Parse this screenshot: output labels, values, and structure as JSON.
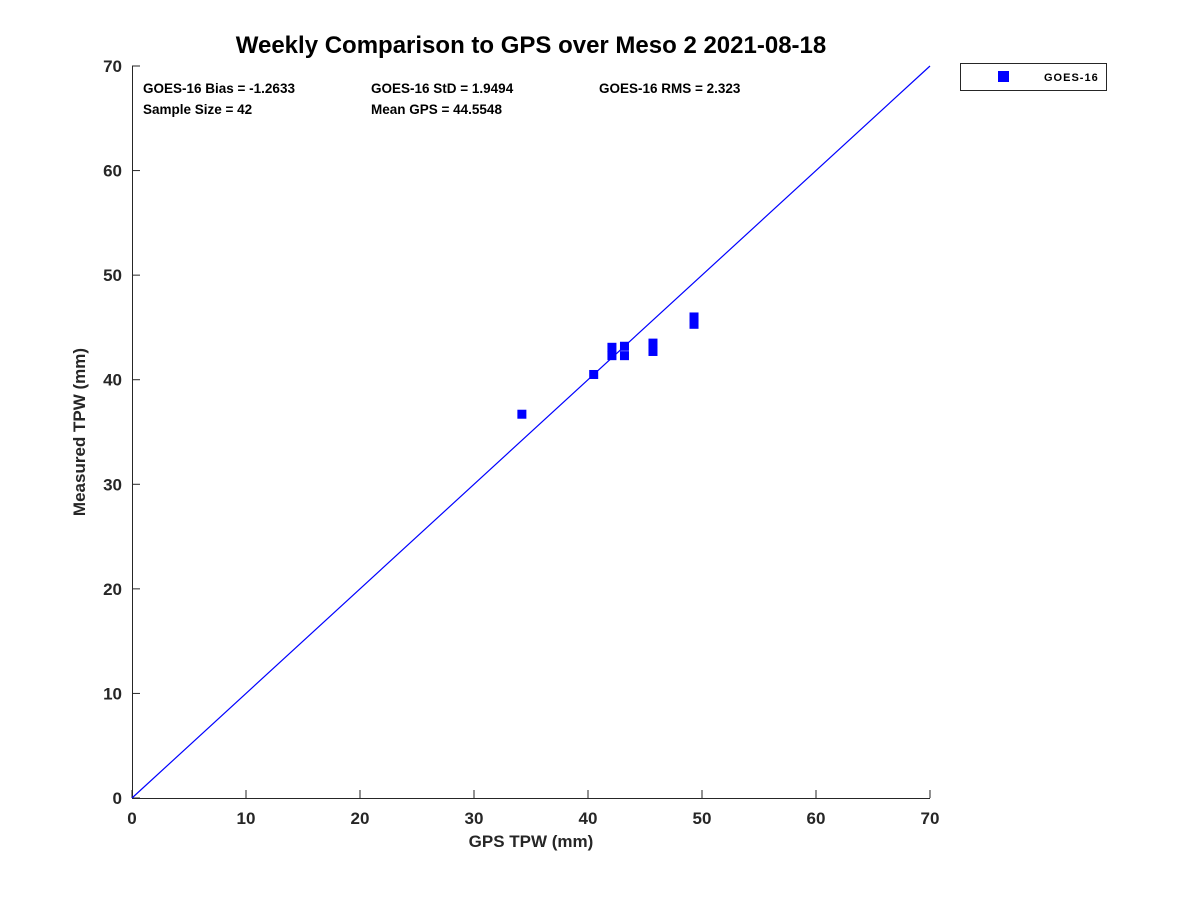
{
  "figure": {
    "title": "Weekly Comparison to GPS over Meso 2 2021-08-18"
  },
  "stats": {
    "bias": "GOES-16 Bias = -1.2633",
    "std": "GOES-16 StD = 1.9494",
    "rms": "GOES-16 RMS = 2.323",
    "sample_size": "Sample Size = 42",
    "mean_gps": "Mean GPS = 44.5548"
  },
  "legend": {
    "entries": [
      {
        "label": "GOES-16",
        "marker": "square",
        "color": "#0000ff"
      }
    ]
  },
  "chart_data": {
    "type": "scatter",
    "title": "Weekly Comparison to GPS over Meso 2 2021-08-18",
    "xlabel": "GPS TPW (mm)",
    "ylabel": "Measured TPW (mm)",
    "xlim": [
      0,
      70
    ],
    "ylim": [
      0,
      70
    ],
    "xticks": [
      0,
      10,
      20,
      30,
      40,
      50,
      60,
      70
    ],
    "yticks": [
      0,
      10,
      20,
      30,
      40,
      50,
      60,
      70
    ],
    "grid": false,
    "legend_position": "outside-top-right",
    "series": [
      {
        "name": "GOES-16",
        "marker": "square",
        "color": "#0000ff",
        "points": [
          [
            34.2,
            36.7
          ],
          [
            40.5,
            40.5
          ],
          [
            42.1,
            43.1
          ],
          [
            42.1,
            42.3
          ],
          [
            43.2,
            43.2
          ],
          [
            43.2,
            42.3
          ],
          [
            45.7,
            43.5
          ],
          [
            45.7,
            42.7
          ],
          [
            49.3,
            46.0
          ],
          [
            49.3,
            45.3
          ]
        ]
      }
    ],
    "reference_line": {
      "from": [
        0,
        0
      ],
      "to": [
        70,
        70
      ],
      "color": "#0000ff"
    },
    "annotations": [
      "GOES-16 Bias = -1.2633",
      "GOES-16 StD = 1.9494",
      "GOES-16 RMS = 2.323",
      "Sample Size = 42",
      "Mean GPS = 44.5548"
    ],
    "axis_color": "#262626",
    "marker_color": "#0000ff"
  }
}
